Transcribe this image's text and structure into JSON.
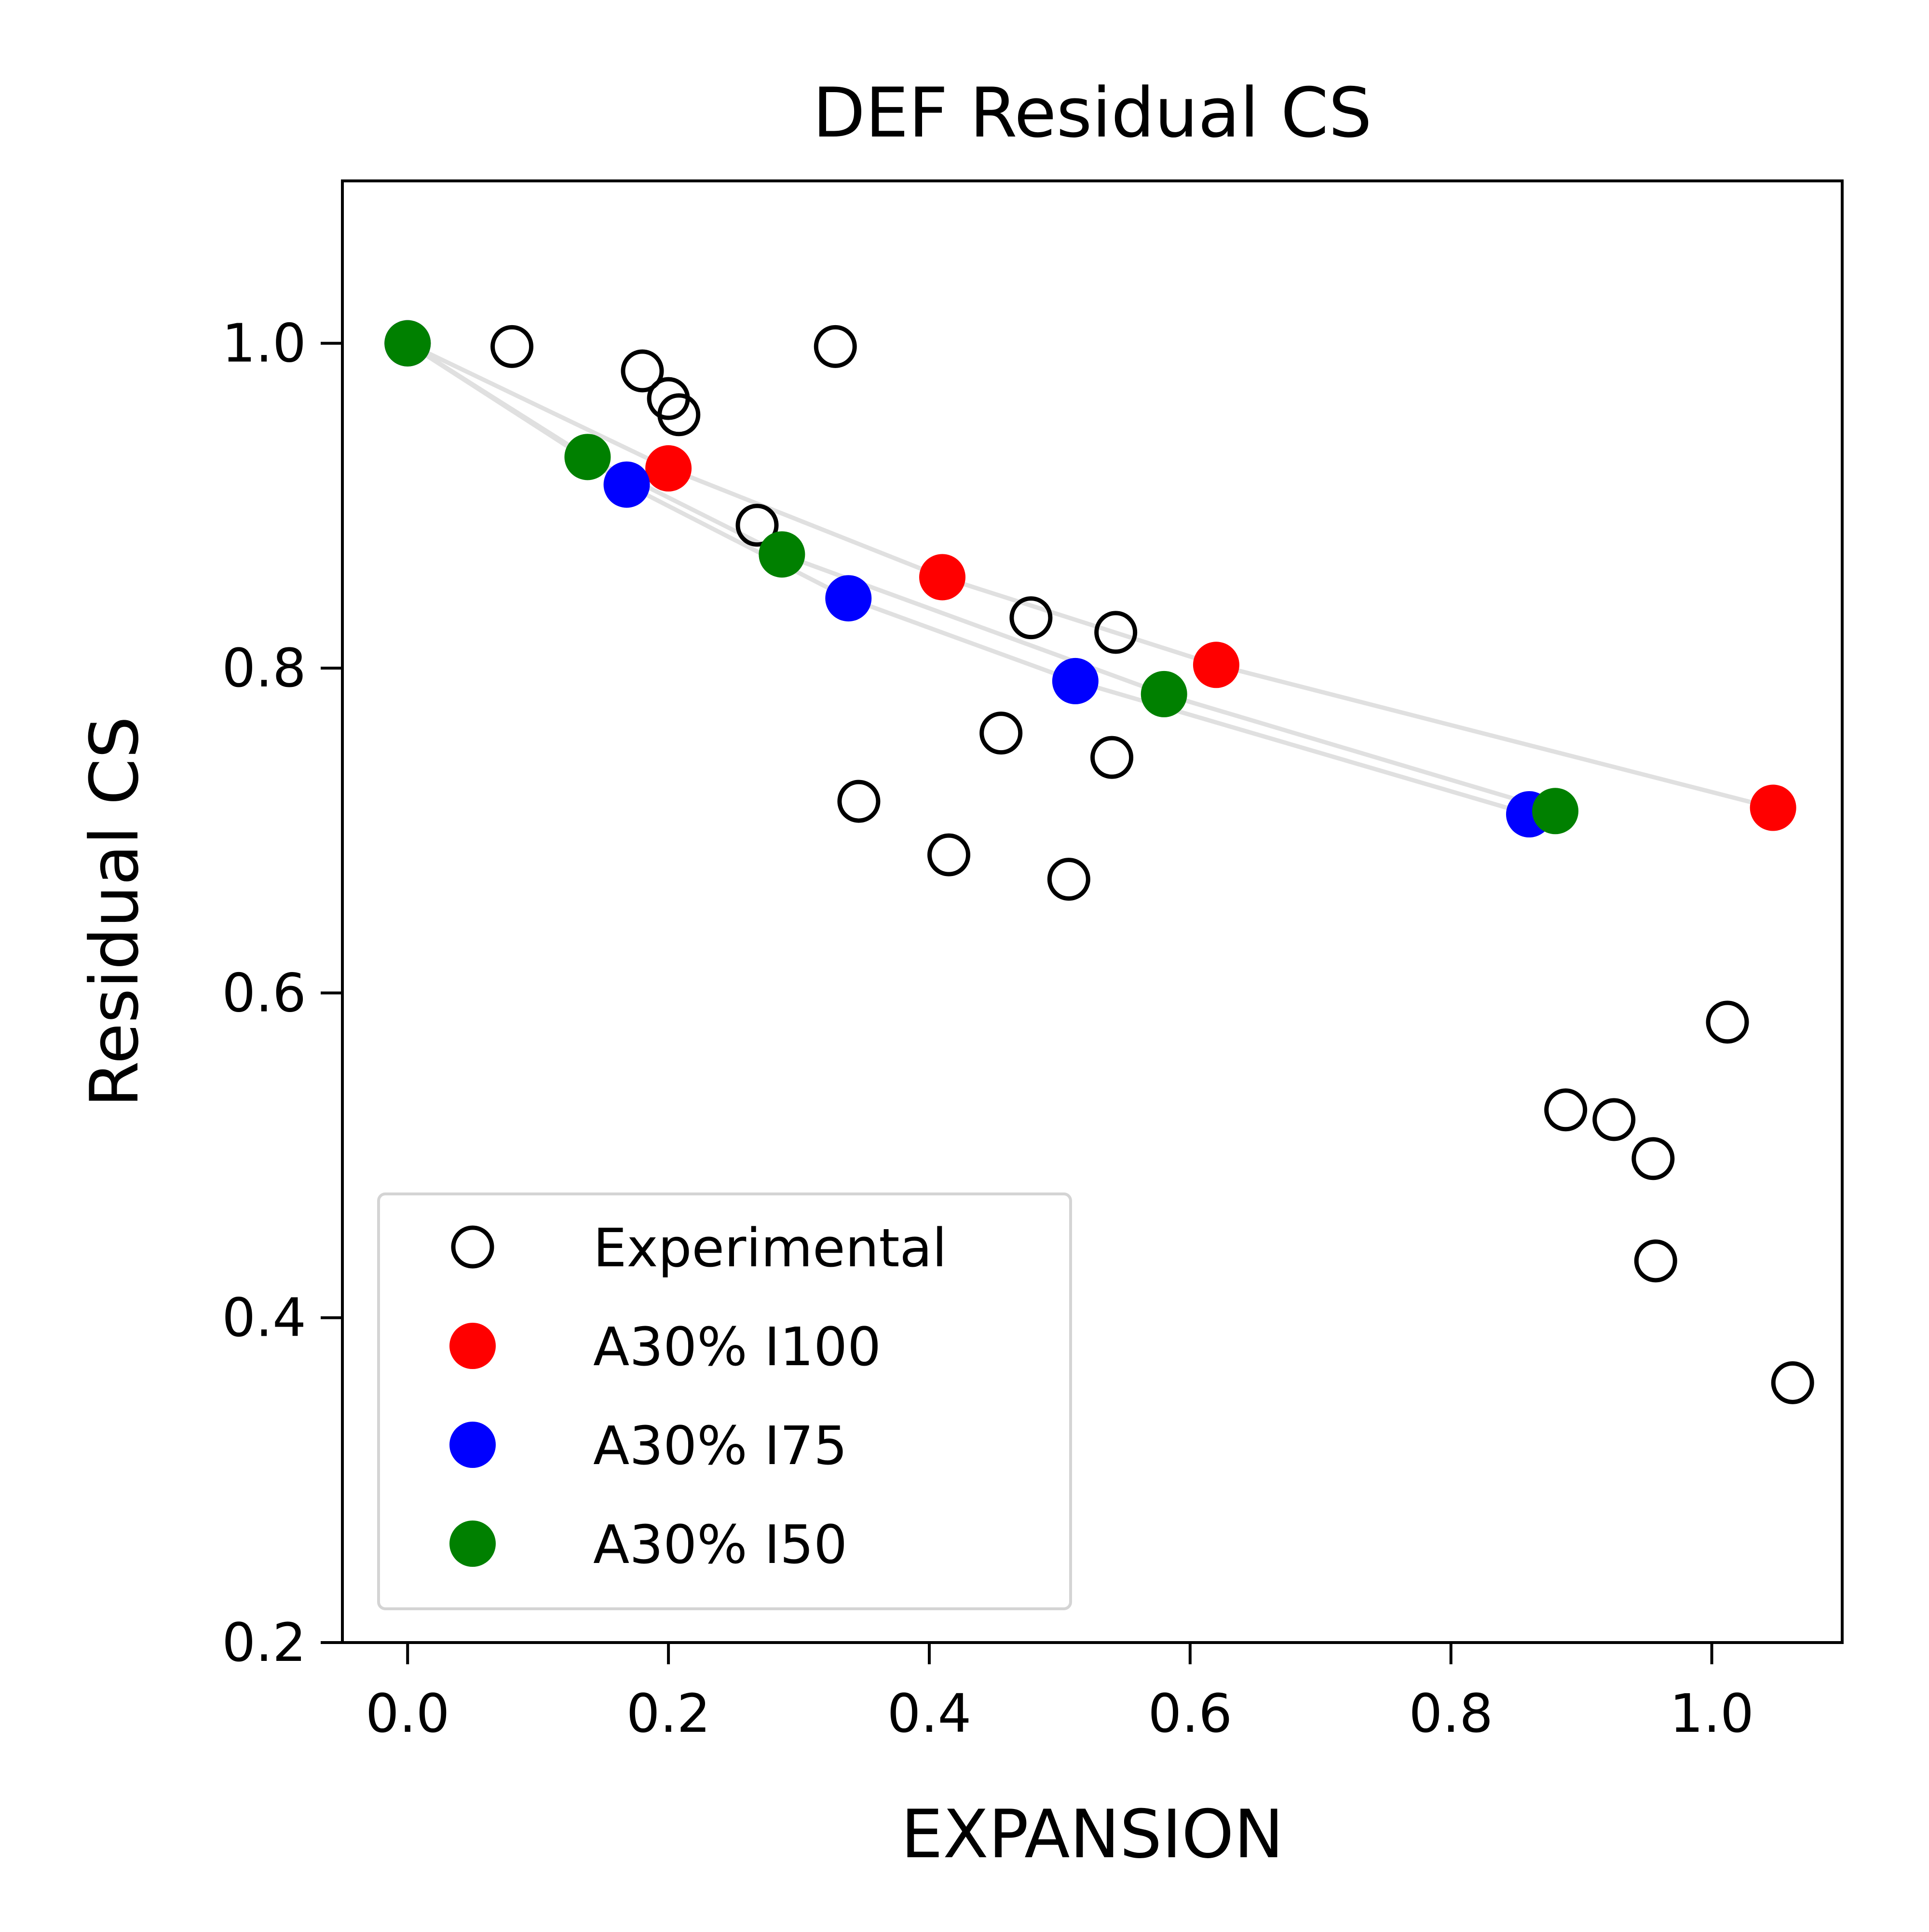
{
  "chart_data": {
    "type": "scatter",
    "title": "DEF Residual CS",
    "xlabel": "EXPANSION",
    "ylabel": "Residual CS",
    "xlim": [
      -0.05,
      1.1
    ],
    "ylim": [
      0.2,
      1.1
    ],
    "xticks": [
      0.0,
      0.2,
      0.4,
      0.6,
      0.8,
      1.0
    ],
    "xtick_labels": [
      "0.0",
      "0.2",
      "0.4",
      "0.6",
      "0.8",
      "1.0"
    ],
    "yticks": [
      0.2,
      0.4,
      0.6,
      0.8,
      1.0
    ],
    "ytick_labels": [
      "0.2",
      "0.4",
      "0.6",
      "0.8",
      "1.0"
    ],
    "grid": false,
    "legend_position": "bottom-left",
    "line_color": "#e0e0e0",
    "series": [
      {
        "name": "Experimental",
        "style": "open-circle",
        "color": "#000000",
        "connected": false,
        "points": [
          [
            0.08,
            0.998
          ],
          [
            0.18,
            0.983
          ],
          [
            0.2,
            0.966
          ],
          [
            0.208,
            0.956
          ],
          [
            0.328,
            0.998
          ],
          [
            0.268,
            0.888
          ],
          [
            0.478,
            0.831
          ],
          [
            0.543,
            0.822
          ],
          [
            0.455,
            0.76
          ],
          [
            0.54,
            0.745
          ],
          [
            0.346,
            0.718
          ],
          [
            0.415,
            0.685
          ],
          [
            0.507,
            0.67
          ],
          [
            1.012,
            0.582
          ],
          [
            0.888,
            0.528
          ],
          [
            0.925,
            0.522
          ],
          [
            0.955,
            0.498
          ],
          [
            0.957,
            0.435
          ],
          [
            1.062,
            0.36
          ]
        ]
      },
      {
        "name": "A30% I100",
        "style": "filled-circle",
        "color": "#ff0000",
        "connected": true,
        "points": [
          [
            0.0,
            1.0
          ],
          [
            0.2,
            0.923
          ],
          [
            0.41,
            0.856
          ],
          [
            0.62,
            0.802
          ],
          [
            1.047,
            0.714
          ]
        ]
      },
      {
        "name": "A30% I75",
        "style": "filled-circle",
        "color": "#0000ff",
        "connected": true,
        "points": [
          [
            0.0,
            1.0
          ],
          [
            0.168,
            0.913
          ],
          [
            0.338,
            0.843
          ],
          [
            0.512,
            0.792
          ],
          [
            0.86,
            0.71
          ]
        ]
      },
      {
        "name": "A30% I50",
        "style": "filled-circle",
        "color": "#008000",
        "connected": true,
        "points": [
          [
            0.0,
            1.0
          ],
          [
            0.138,
            0.93
          ],
          [
            0.287,
            0.87
          ],
          [
            0.58,
            0.784
          ],
          [
            0.88,
            0.712
          ]
        ]
      }
    ]
  }
}
